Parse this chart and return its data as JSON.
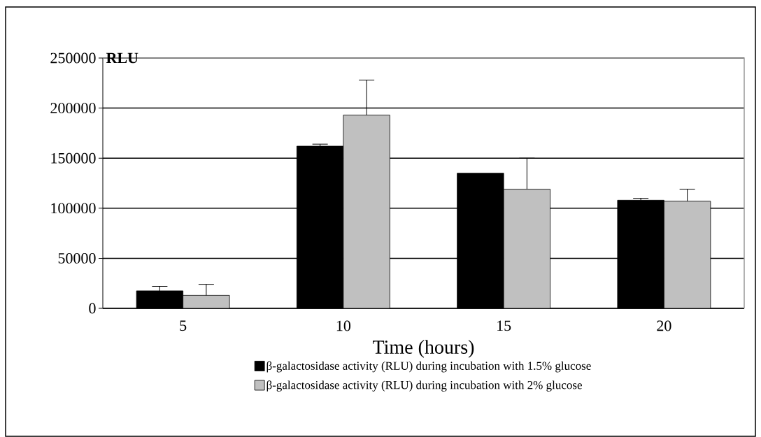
{
  "chart_data": {
    "type": "bar",
    "xlabel": "Time (hours)",
    "ylabel": "RLU",
    "categories": [
      "5",
      "10",
      "15",
      "20"
    ],
    "series": [
      {
        "name": "β-galactosidase activity (RLU) during incubation with 1.5% glucose",
        "color": "#000000",
        "values": [
          17500,
          162000,
          135000,
          108000
        ],
        "errors": [
          [
            17500,
            22000
          ],
          [
            162000,
            164000
          ],
          null,
          [
            108000,
            110000
          ]
        ]
      },
      {
        "name": "β-galactosidase activity (RLU) during incubation with 2% glucose",
        "color": "#c0c0c0",
        "values": [
          13000,
          193000,
          119000,
          107000
        ],
        "errors": [
          [
            13000,
            24000
          ],
          [
            193000,
            228000
          ],
          [
            119000,
            150000
          ],
          [
            107000,
            119000
          ]
        ]
      }
    ],
    "ylim": [
      0,
      250000
    ],
    "yticks": [
      0,
      50000,
      100000,
      150000,
      200000,
      250000
    ],
    "grid": "y",
    "legend": "bottom"
  }
}
